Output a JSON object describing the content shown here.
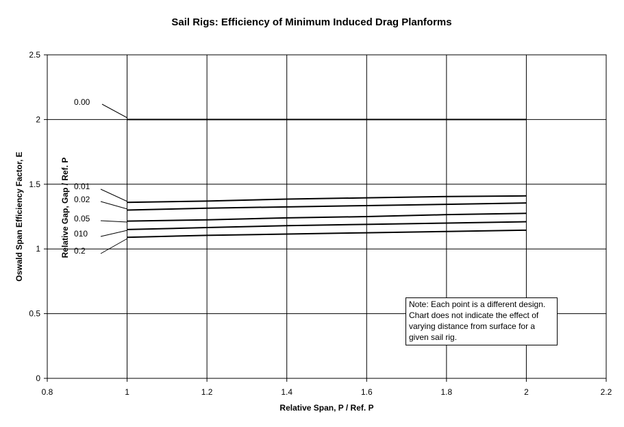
{
  "chart_data": {
    "type": "line",
    "title": "Sail Rigs:  Efficiency of Minimum Induced Drag Planforms",
    "xlabel": "Relative Span, P / Ref. P",
    "ylabel": "Oswald Span Efficiency Factor, E",
    "legend_title": "Relative Gap, Gap / Ref. P",
    "xlim": [
      0.8,
      2.2
    ],
    "ylim": [
      0,
      2.5
    ],
    "xticks": [
      "0.8",
      "1",
      "1.2",
      "1.4",
      "1.6",
      "1.8",
      "2",
      "2.2"
    ],
    "yticks": [
      "0",
      "0.5",
      "1",
      "1.5",
      "2",
      "2.5"
    ],
    "grid": true,
    "series": [
      {
        "name": "0.00",
        "x": [
          1,
          1.2,
          1.4,
          1.6,
          1.8,
          2
        ],
        "y": [
          2.0,
          2.0,
          2.0,
          2.0,
          2.0,
          2.0
        ]
      },
      {
        "name": "0.01",
        "x": [
          1,
          1.2,
          1.4,
          1.6,
          1.8,
          2
        ],
        "y": [
          1.36,
          1.37,
          1.385,
          1.395,
          1.405,
          1.41
        ]
      },
      {
        "name": "0.02",
        "x": [
          1,
          1.2,
          1.4,
          1.6,
          1.8,
          2
        ],
        "y": [
          1.3,
          1.315,
          1.325,
          1.335,
          1.345,
          1.355
        ]
      },
      {
        "name": "0.05",
        "x": [
          1,
          1.2,
          1.4,
          1.6,
          1.8,
          2
        ],
        "y": [
          1.215,
          1.225,
          1.24,
          1.25,
          1.265,
          1.275
        ]
      },
      {
        "name": "010",
        "x": [
          1,
          1.2,
          1.4,
          1.6,
          1.8,
          2
        ],
        "y": [
          1.15,
          1.165,
          1.18,
          1.19,
          1.2,
          1.21
        ]
      },
      {
        "name": "0.2",
        "x": [
          1,
          1.2,
          1.4,
          1.6,
          1.8,
          2
        ],
        "y": [
          1.09,
          1.105,
          1.115,
          1.125,
          1.135,
          1.145
        ]
      }
    ],
    "note": "Note: Each point is a different design.\nChart does not indicate the effect of\nvarying distance from surface for a\ngiven sail rig."
  }
}
